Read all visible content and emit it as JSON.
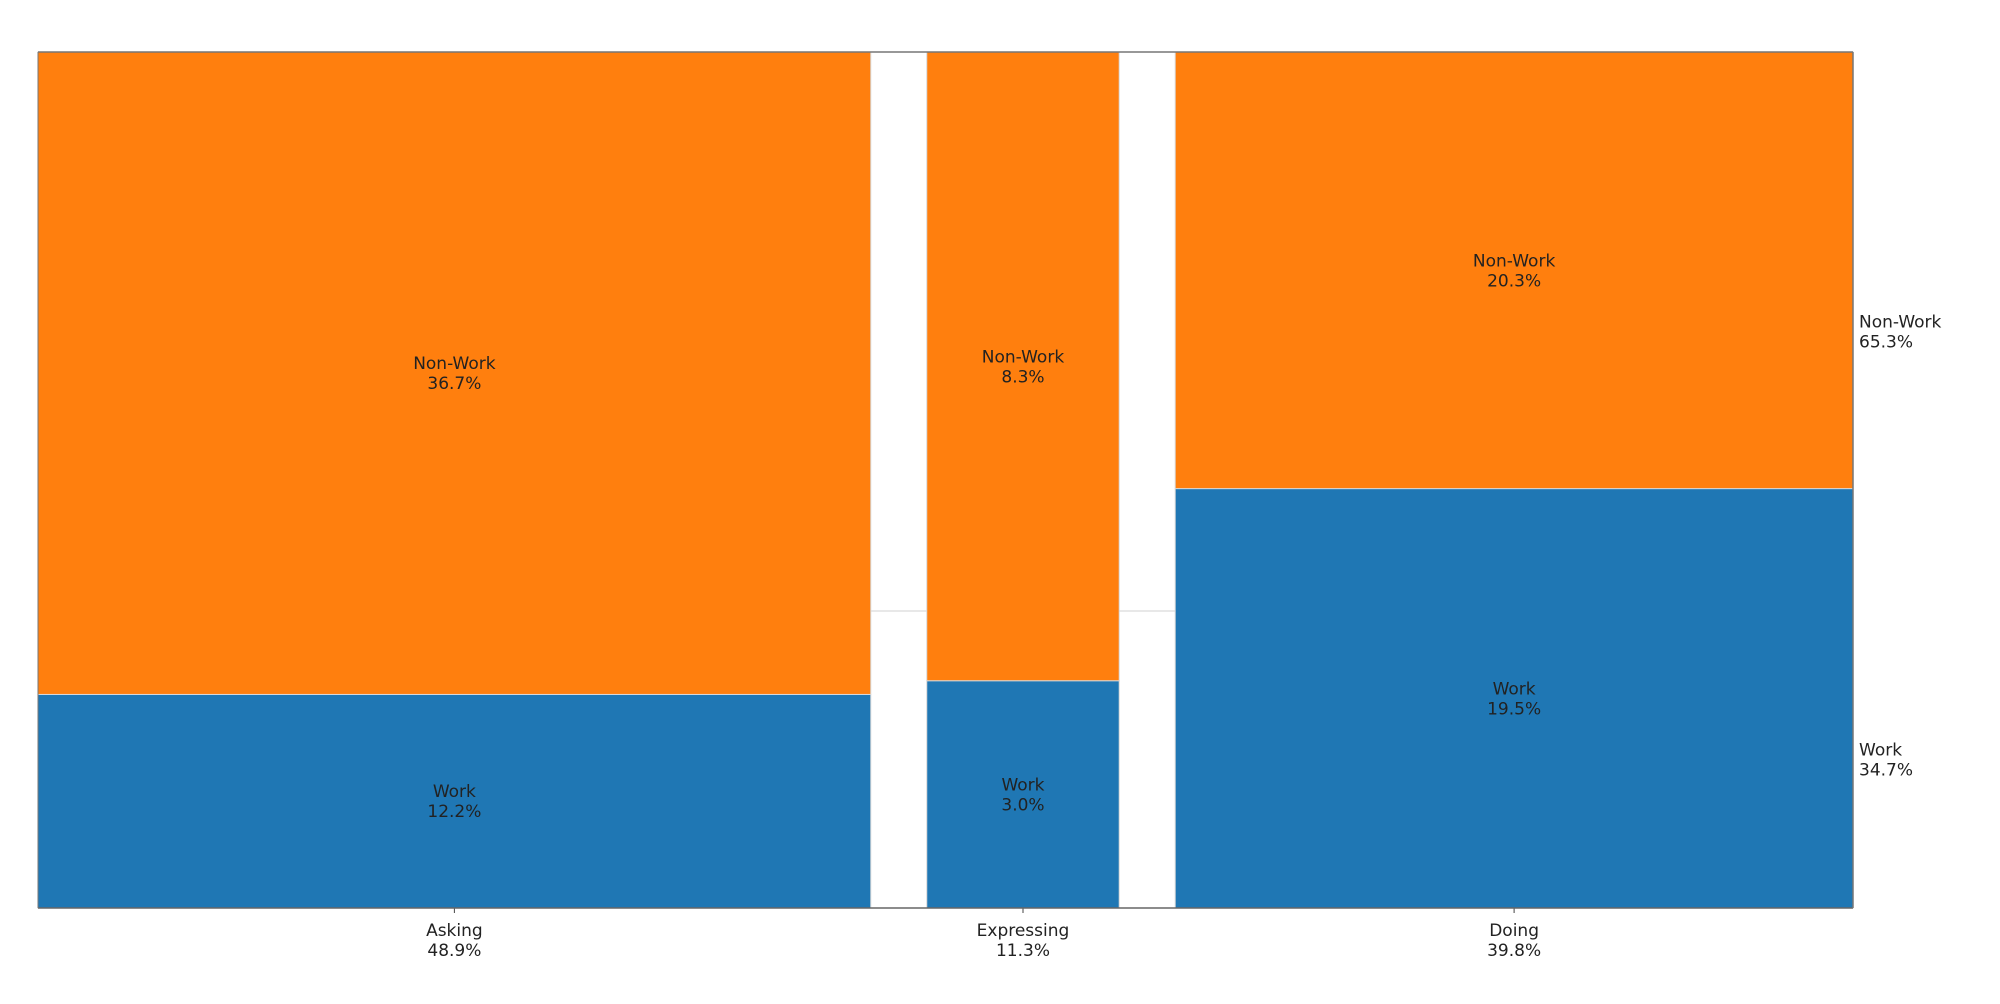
{
  "chart_data": {
    "type": "mosaic",
    "categories": [
      {
        "label": "Asking",
        "share_label": "48.9%",
        "share": 48.9,
        "segments": [
          {
            "name": "Work",
            "value": 12.2,
            "value_label": "12.2%"
          },
          {
            "name": "Non-Work",
            "value": 36.7,
            "value_label": "36.7%"
          }
        ]
      },
      {
        "label": "Expressing",
        "share_label": "11.3%",
        "share": 11.3,
        "segments": [
          {
            "name": "Work",
            "value": 3.0,
            "value_label": "3.0%"
          },
          {
            "name": "Non-Work",
            "value": 8.3,
            "value_label": "8.3%"
          }
        ]
      },
      {
        "label": "Doing",
        "share_label": "39.8%",
        "share": 39.8,
        "segments": [
          {
            "name": "Work",
            "value": 19.5,
            "value_label": "19.5%"
          },
          {
            "name": "Non-Work",
            "value": 20.3,
            "value_label": "20.3%"
          }
        ]
      }
    ],
    "row_totals": [
      {
        "name": "Work",
        "value": 34.7,
        "value_label": "34.7%"
      },
      {
        "name": "Non-Work",
        "value": 65.3,
        "value_label": "65.3%"
      }
    ],
    "colors": {
      "Work": "#1f77b4",
      "Non-Work": "#ff7f0e"
    },
    "title": "",
    "xlabel": "",
    "ylabel": "",
    "grid": false
  }
}
